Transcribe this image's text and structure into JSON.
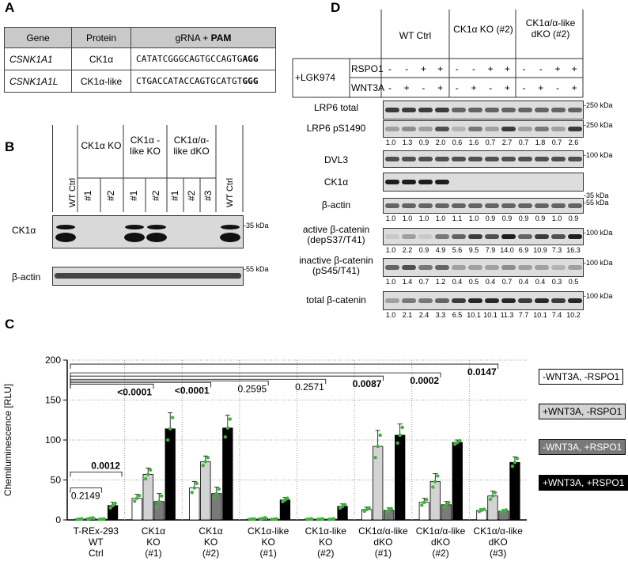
{
  "panels": {
    "a": "A",
    "b": "B",
    "c": "C",
    "d": "D"
  },
  "table": {
    "headers": [
      "Gene",
      "Protein",
      "gRNA + "
    ],
    "pam": "PAM",
    "rows": [
      {
        "gene": "CSNK1A1",
        "protein": "CK1α",
        "seq": "CATATCGGGCAGTGCCAGTG",
        "pam": "AGG"
      },
      {
        "gene": "CSNK1A1L",
        "protein": "CK1α-like",
        "seq": "CTGACCATACCAGTGCATGT",
        "pam": "GGG"
      }
    ]
  },
  "panelB": {
    "groups": [
      "WT Ctrl",
      "CK1α KO",
      "CK1α -like KO",
      "CK1α/α-like dKO",
      "WT Ctrl"
    ],
    "clones": [
      "#1",
      "#2",
      "#1",
      "#2",
      "#1",
      "#2",
      "#3"
    ],
    "blots": [
      "CK1α",
      "β-actin"
    ],
    "markers": [
      "-35 kDa",
      "-55 kDa"
    ]
  },
  "panelD": {
    "groups": [
      "WT Ctrl",
      "CK1α KO (#2)",
      "CK1α/α-like dKO (#2)"
    ],
    "treatment": "+LGK974",
    "rspo1_label": "RSPO1",
    "wnt3a_label": "WNT3A",
    "rspo1": [
      "-",
      "-",
      "+",
      "+",
      "-",
      "-",
      "+",
      "+",
      "-",
      "-",
      "+",
      "+"
    ],
    "wnt3a": [
      "-",
      "+",
      "-",
      "+",
      "-",
      "+",
      "-",
      "+",
      "-",
      "+",
      "-",
      "+"
    ],
    "blots": [
      {
        "label": "LRP6 total",
        "marker": "-250 kDa",
        "quant": []
      },
      {
        "label": "LRP6 pS1490",
        "marker": "-250 kDa",
        "quant": [
          "1.0",
          "1.3",
          "0.9",
          "2.0",
          "0.6",
          "1.6",
          "0.7",
          "2.7",
          "0.7",
          "1.8",
          "0.7",
          "2.6"
        ]
      },
      {
        "label": "DVL3",
        "marker": "-100 kDa",
        "quant": []
      },
      {
        "label": "CK1α",
        "marker": "-35 kDa",
        "quant": []
      },
      {
        "label": "β-actin",
        "marker": "-55 kDa",
        "quant": [
          "1.0",
          "1.0",
          "1.0",
          "1.0",
          "1.1",
          "1.0",
          "0.9",
          "0.9",
          "0.9",
          "0.9",
          "1.0",
          "0.9"
        ]
      },
      {
        "label": "active β-catenin (depS37/T41)",
        "marker": "-100 kDa",
        "quant": [
          "1.0",
          "2.2",
          "0.9",
          "4.9",
          "5.6",
          "9.5",
          "7.9",
          "14.0",
          "6.9",
          "10.9",
          "7.3",
          "16.3"
        ]
      },
      {
        "label": "inactive β-catenin (pS45/T41)",
        "marker": "-100 kDa",
        "quant": [
          "1.0",
          "1.4",
          "0.7",
          "1.2",
          "0.4",
          "0.5",
          "0.4",
          "0.7",
          "0.4",
          "0.4",
          "0.3",
          "0.5"
        ]
      },
      {
        "label": "total β-catenin",
        "marker": "-100 kDa",
        "quant": [
          "1.0",
          "2.1",
          "2.4",
          "3.3",
          "6.5",
          "10.1",
          "10.1",
          "11.3",
          "7.7",
          "10.1",
          "7.4",
          "10.2"
        ]
      }
    ]
  },
  "chart_data": {
    "type": "bar",
    "ylabel": "Chemiluminescence [RLU]",
    "ylim": [
      0,
      200
    ],
    "yticks": [
      0,
      50,
      100,
      150,
      200
    ],
    "categories": [
      "T-REx-293 WT Ctrl",
      "CK1α KO (#1)",
      "CK1α KO (#2)",
      "CK1α-like KO (#1)",
      "CK1α-like KO (#2)",
      "CK1α/α-like dKO (#1)",
      "CK1α/α-like dKO (#2)",
      "CK1α/α-like dKO (#3)"
    ],
    "series": [
      {
        "name": "-WNT3A, -RSPO1",
        "color": "#ffffff",
        "values": [
          1,
          27,
          40,
          1,
          1,
          13,
          22,
          12
        ]
      },
      {
        "name": "+WNT3A, -RSPO1",
        "color": "#d3d3d3",
        "values": [
          2,
          57,
          73,
          2,
          1,
          92,
          48,
          30
        ]
      },
      {
        "name": "-WNT3A, +RSPO1",
        "color": "#7a7a7a",
        "values": [
          1,
          23,
          33,
          1,
          1,
          12,
          19,
          11
        ]
      },
      {
        "name": "+WNT3A, +RSPO1",
        "color": "#000000",
        "values": [
          18,
          114,
          115,
          25,
          17,
          106,
          97,
          72
        ]
      }
    ],
    "errors": [
      [
        0.5,
        5,
        8,
        0.5,
        0.5,
        3,
        5,
        2
      ],
      [
        1,
        8,
        7,
        1,
        0.5,
        20,
        10,
        6
      ],
      [
        0.5,
        10,
        8,
        0.5,
        0.5,
        3,
        4,
        2
      ],
      [
        4,
        20,
        16,
        3,
        3,
        14,
        3,
        7
      ]
    ],
    "pvalues": [
      "0.2149",
      "0.0012",
      "<0.0001",
      "<0.0001",
      "0.2595",
      "0.2571",
      "0.0087",
      "0.0002",
      "0.0147"
    ],
    "pvalue_bold": [
      false,
      true,
      true,
      true,
      false,
      false,
      true,
      true,
      true
    ]
  }
}
